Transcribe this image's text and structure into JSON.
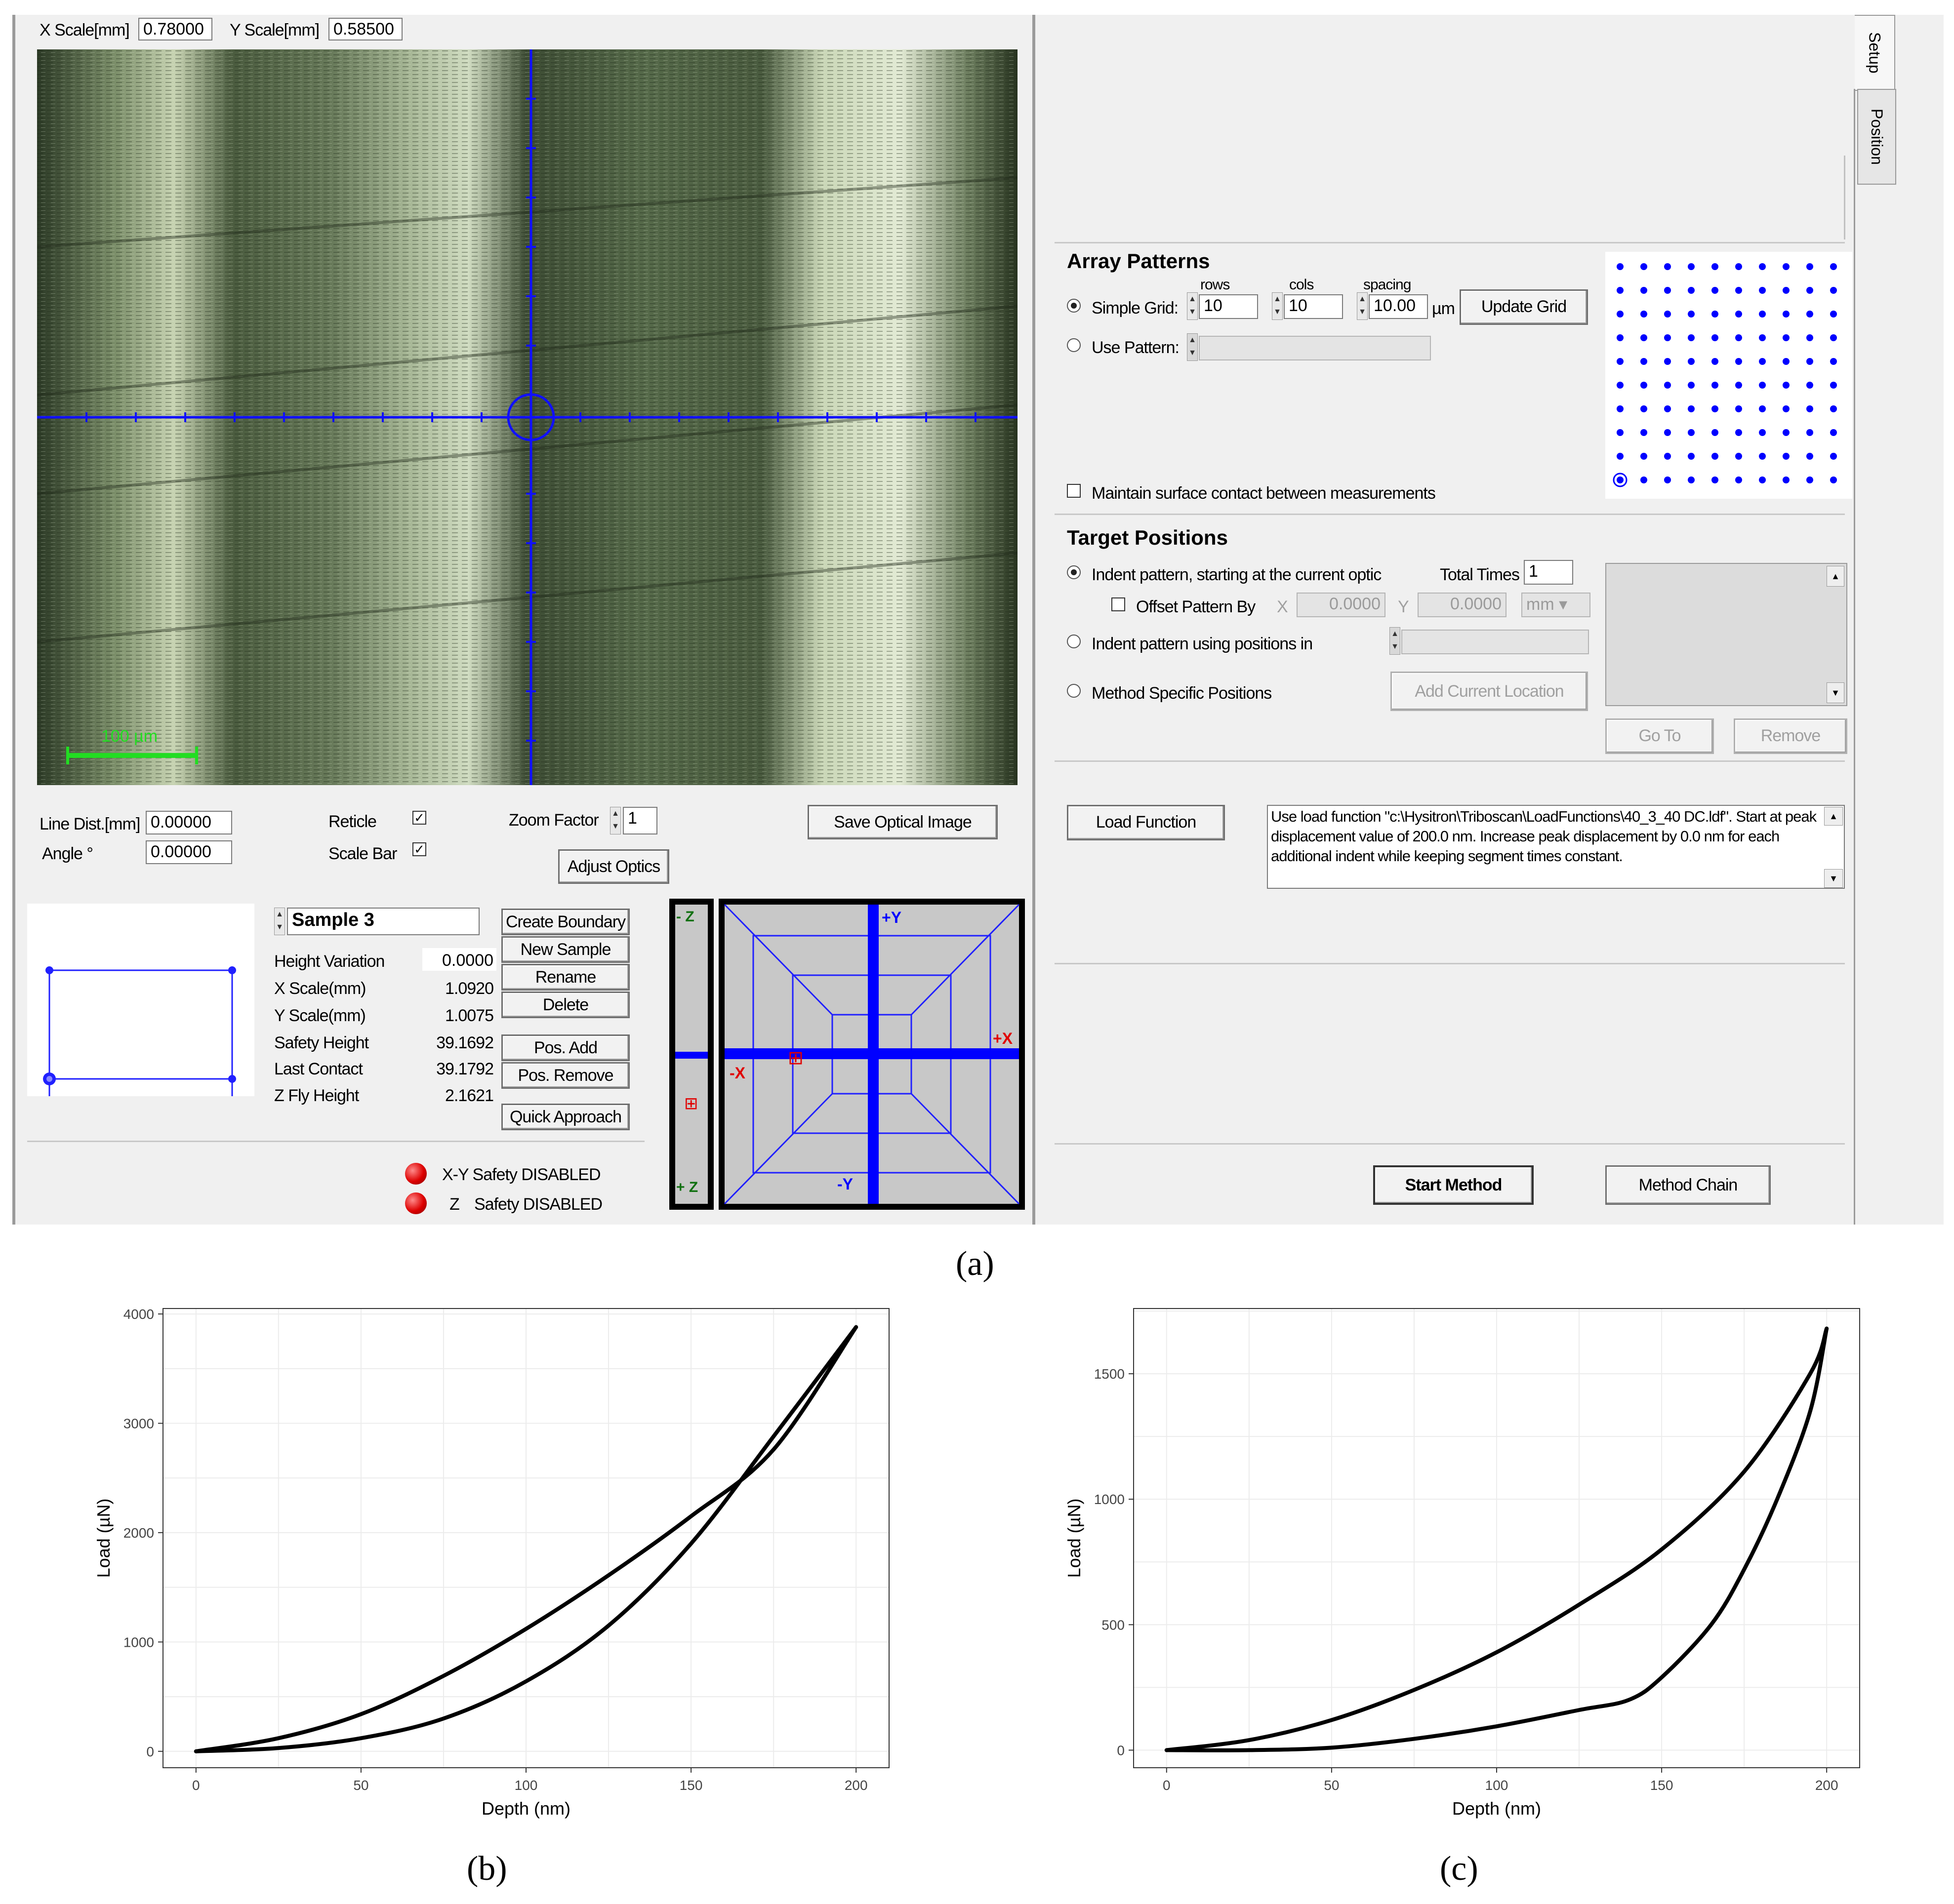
{
  "scale_bar": {
    "x_label": "X Scale[mm]",
    "x_value": "0.78000",
    "y_label": "Y Scale[mm]",
    "y_value": "0.58500"
  },
  "optical": {
    "scale_bar_text": "100 µm"
  },
  "line_dist": {
    "label": "Line Dist.[mm]",
    "value": "0.00000"
  },
  "angle": {
    "label": "Angle °",
    "value": "0.00000"
  },
  "reticle": {
    "label": "Reticle",
    "checked": "✓"
  },
  "scale_bar_chk": {
    "label": "Scale Bar",
    "checked": "✓"
  },
  "zoom": {
    "label": "Zoom Factor",
    "value": "1"
  },
  "buttons": {
    "save_optical": "Save Optical Image",
    "adjust_optics": "Adjust Optics",
    "create_boundary": "Create Boundary",
    "new_sample": "New Sample",
    "rename": "Rename",
    "delete": "Delete",
    "pos_add": "Pos. Add",
    "pos_remove": "Pos. Remove",
    "quick_approach": "Quick Approach",
    "update_grid": "Update Grid",
    "add_current_location": "Add Current Location",
    "go_to": "Go To",
    "remove": "Remove",
    "load_function": "Load Function",
    "start_method": "Start Method",
    "method_chain": "Method Chain"
  },
  "sample": {
    "name": "Sample 3",
    "props": [
      {
        "label": "Height Variation",
        "value": "0.0000"
      },
      {
        "label": "X Scale(mm)",
        "value": "1.0920"
      },
      {
        "label": "Y Scale(mm)",
        "value": "1.0075"
      },
      {
        "label": "Safety Height",
        "value": "39.1692"
      },
      {
        "label": "Last Contact",
        "value": "39.1792"
      },
      {
        "label": "Z Fly Height",
        "value": "2.1621"
      }
    ]
  },
  "safety": {
    "xy": "X-Y Safety DISABLED",
    "z_prefix": "Z",
    "z": "Safety DISABLED"
  },
  "stage": {
    "minus_z": "- Z",
    "plus_z": "+ Z",
    "plus_y": "+Y",
    "minus_y": "-Y",
    "plus_x": "+X",
    "minus_x": "-X"
  },
  "tabs": [
    "Setup",
    "Position"
  ],
  "array_patterns": {
    "title": "Array Patterns",
    "simple_grid": "Simple Grid:",
    "rows_label": "rows",
    "rows": "10",
    "cols_label": "cols",
    "cols": "10",
    "spacing_label": "spacing",
    "spacing": "10.00",
    "unit": "µm",
    "use_pattern": "Use Pattern:",
    "maintain": "Maintain surface contact between measurements"
  },
  "target_positions": {
    "title": "Target Positions",
    "indent_current": "Indent pattern, starting at the current optic",
    "total_times_label": "Total Times",
    "total_times": "1",
    "offset_label": "Offset Pattern By",
    "x_label": "X",
    "x": "0.0000",
    "y_label": "Y",
    "y": "0.0000",
    "unit": "mm",
    "indent_using": "Indent pattern using positions in",
    "method_specific": "Method Specific Positions"
  },
  "load_function_text": "Use load function \"c:\\Hysitron\\Triboscan\\LoadFunctions\\40_3_40 DC.ldf\". Start at peak displacement value of 200.0 nm. Increase peak displacement by 0.0 nm for each additional indent while keeping segment times constant.",
  "captions": {
    "a": "(a)",
    "b": "(b)",
    "c": "(c)"
  },
  "colors": {
    "accent_blue": "#0000ff",
    "led_red": "#dd0000",
    "grid": "#ececec"
  },
  "chart_data": [
    {
      "type": "line",
      "xlabel": "Depth (nm)",
      "ylabel": "Load (µN)",
      "xlim": [
        -10,
        210
      ],
      "ylim": [
        -150,
        4050
      ],
      "x_ticks": [
        0,
        50,
        100,
        150,
        200
      ],
      "y_ticks": [
        0,
        1000,
        2000,
        3000,
        4000
      ],
      "grid": true,
      "series": [
        {
          "x": [
            0,
            25,
            50,
            75,
            100,
            125,
            150,
            175,
            200
          ],
          "y": [
            0,
            120,
            340,
            690,
            1120,
            1610,
            2150,
            2760,
            3880
          ]
        },
        {
          "x": [
            200,
            175,
            150,
            125,
            100,
            75,
            50,
            25,
            0
          ],
          "y": [
            3880,
            2880,
            1900,
            1150,
            640,
            300,
            120,
            30,
            0
          ]
        }
      ]
    },
    {
      "type": "line",
      "xlabel": "Depth (nm)",
      "ylabel": "Load (µN)",
      "xlim": [
        -10,
        210
      ],
      "ylim": [
        -70,
        1760
      ],
      "x_ticks": [
        0,
        50,
        100,
        150,
        200
      ],
      "y_ticks": [
        0,
        500,
        1000,
        1500
      ],
      "grid": true,
      "series": [
        {
          "x": [
            0,
            25,
            50,
            75,
            100,
            125,
            150,
            175,
            195,
            200
          ],
          "y": [
            0,
            40,
            120,
            240,
            390,
            580,
            800,
            1110,
            1500,
            1680
          ]
        },
        {
          "x": [
            200,
            195,
            185,
            175,
            165,
            150,
            140,
            125,
            100,
            75,
            50,
            25,
            0
          ],
          "y": [
            1680,
            1350,
            1000,
            720,
            500,
            290,
            200,
            160,
            95,
            45,
            10,
            0,
            0
          ]
        }
      ]
    }
  ]
}
